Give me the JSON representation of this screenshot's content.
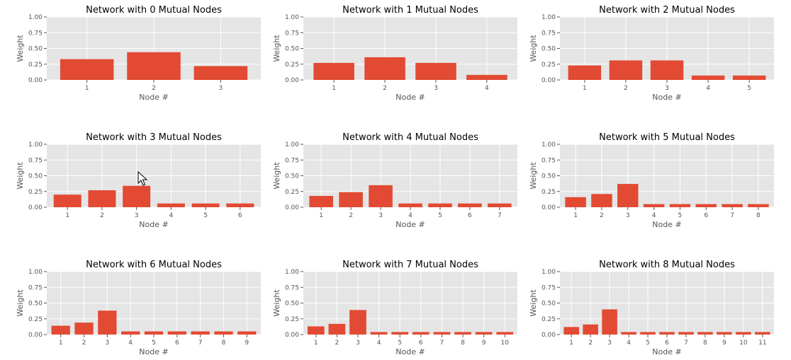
{
  "figure": {
    "bar_color": "#E24A33",
    "panel_bg": "#E5E5E5",
    "grid_color": "#FFFFFF",
    "text_color": "#555555",
    "title_color": "#000000",
    "cursor_icon": "arrow-cursor-icon"
  },
  "chart_data": [
    {
      "type": "bar",
      "title": "Network with 0 Mutual Nodes",
      "xlabel": "Node #",
      "ylabel": "Weight",
      "ylim": [
        0,
        1
      ],
      "yticks": [
        "0.00",
        "0.25",
        "0.50",
        "0.75",
        "1.00"
      ],
      "grid": true,
      "categories": [
        "1",
        "2",
        "3"
      ],
      "values": [
        0.33,
        0.44,
        0.22
      ]
    },
    {
      "type": "bar",
      "title": "Network with 1 Mutual Nodes",
      "xlabel": "Node #",
      "ylabel": "Weight",
      "ylim": [
        0,
        1
      ],
      "yticks": [
        "0.00",
        "0.25",
        "0.50",
        "0.75",
        "1.00"
      ],
      "grid": true,
      "categories": [
        "1",
        "2",
        "3",
        "4"
      ],
      "values": [
        0.27,
        0.36,
        0.27,
        0.08
      ]
    },
    {
      "type": "bar",
      "title": "Network with 2 Mutual Nodes",
      "xlabel": "Node #",
      "ylabel": "Weight",
      "ylim": [
        0,
        1
      ],
      "yticks": [
        "0.00",
        "0.25",
        "0.50",
        "0.75",
        "1.00"
      ],
      "grid": true,
      "categories": [
        "1",
        "2",
        "3",
        "4",
        "5"
      ],
      "values": [
        0.23,
        0.31,
        0.31,
        0.07,
        0.07
      ]
    },
    {
      "type": "bar",
      "title": "Network with 3 Mutual Nodes",
      "xlabel": "Node #",
      "ylabel": "Weight",
      "ylim": [
        0,
        1
      ],
      "yticks": [
        "0.00",
        "0.25",
        "0.50",
        "0.75",
        "1.00"
      ],
      "grid": true,
      "categories": [
        "1",
        "2",
        "3",
        "4",
        "5",
        "6"
      ],
      "values": [
        0.2,
        0.27,
        0.34,
        0.06,
        0.06,
        0.06
      ]
    },
    {
      "type": "bar",
      "title": "Network with 4 Mutual Nodes",
      "xlabel": "Node #",
      "ylabel": "Weight",
      "ylim": [
        0,
        1
      ],
      "yticks": [
        "0.00",
        "0.25",
        "0.50",
        "0.75",
        "1.00"
      ],
      "grid": true,
      "categories": [
        "1",
        "2",
        "3",
        "4",
        "5",
        "6",
        "7"
      ],
      "values": [
        0.18,
        0.24,
        0.35,
        0.06,
        0.06,
        0.06,
        0.06
      ]
    },
    {
      "type": "bar",
      "title": "Network with 5 Mutual Nodes",
      "xlabel": "Node #",
      "ylabel": "Weight",
      "ylim": [
        0,
        1
      ],
      "yticks": [
        "0.00",
        "0.25",
        "0.50",
        "0.75",
        "1.00"
      ],
      "grid": true,
      "categories": [
        "1",
        "2",
        "3",
        "4",
        "5",
        "6",
        "7",
        "8"
      ],
      "values": [
        0.16,
        0.21,
        0.37,
        0.05,
        0.05,
        0.05,
        0.05,
        0.05
      ]
    },
    {
      "type": "bar",
      "title": "Network with 6 Mutual Nodes",
      "xlabel": "Node #",
      "ylabel": "Weight",
      "ylim": [
        0,
        1
      ],
      "yticks": [
        "0.00",
        "0.25",
        "0.50",
        "0.75",
        "1.00"
      ],
      "grid": true,
      "categories": [
        "1",
        "2",
        "3",
        "4",
        "5",
        "6",
        "7",
        "8",
        "9"
      ],
      "values": [
        0.14,
        0.19,
        0.38,
        0.05,
        0.05,
        0.05,
        0.05,
        0.05,
        0.05
      ]
    },
    {
      "type": "bar",
      "title": "Network with 7 Mutual Nodes",
      "xlabel": "Node #",
      "ylabel": "Weight",
      "ylim": [
        0,
        1
      ],
      "yticks": [
        "0.00",
        "0.25",
        "0.50",
        "0.75",
        "1.00"
      ],
      "grid": true,
      "categories": [
        "1",
        "2",
        "3",
        "4",
        "5",
        "6",
        "7",
        "8",
        "9",
        "10"
      ],
      "values": [
        0.13,
        0.17,
        0.39,
        0.04,
        0.04,
        0.04,
        0.04,
        0.04,
        0.04,
        0.04
      ]
    },
    {
      "type": "bar",
      "title": "Network with 8 Mutual Nodes",
      "xlabel": "Node #",
      "ylabel": "Weight",
      "ylim": [
        0,
        1
      ],
      "yticks": [
        "0.00",
        "0.25",
        "0.50",
        "0.75",
        "1.00"
      ],
      "grid": true,
      "categories": [
        "1",
        "2",
        "3",
        "4",
        "5",
        "6",
        "7",
        "8",
        "9",
        "10",
        "11"
      ],
      "values": [
        0.12,
        0.16,
        0.4,
        0.04,
        0.04,
        0.04,
        0.04,
        0.04,
        0.04,
        0.04,
        0.04
      ]
    }
  ]
}
